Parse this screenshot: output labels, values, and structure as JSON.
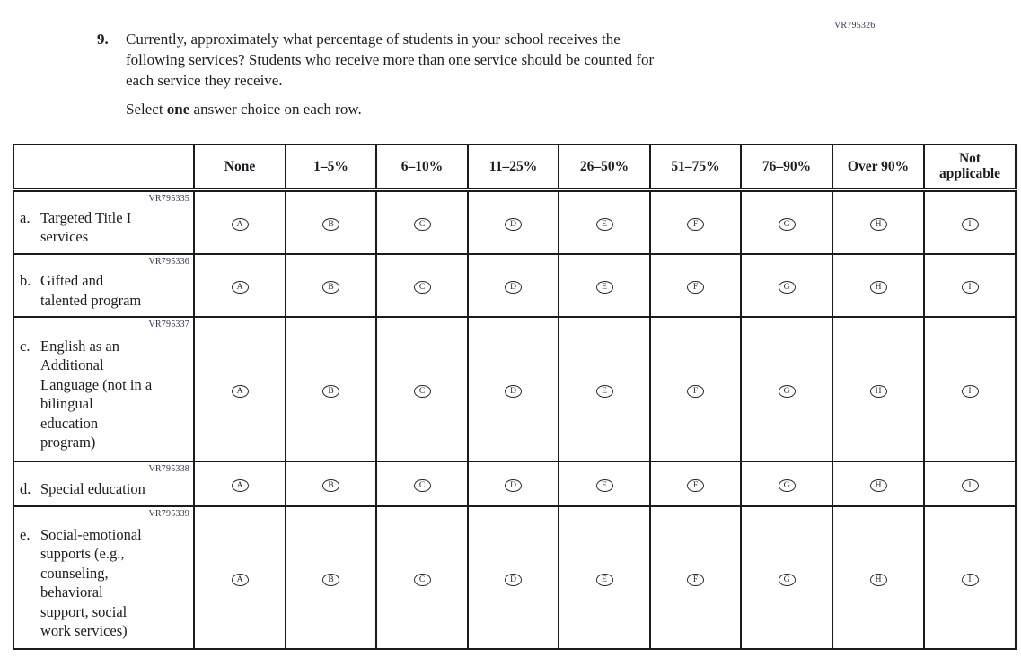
{
  "page": {
    "form_code": "VR795326"
  },
  "question": {
    "number": "9.",
    "text": "Currently, approximately what percentage of students in your school receives the\nfollowing services? Students who receive more than one service should be counted for\neach service they receive.",
    "instruction_prefix": "Select ",
    "instruction_bold": "one",
    "instruction_suffix": " answer choice on each row."
  },
  "table": {
    "column_headers": [
      "None",
      "1–5%",
      "6–10%",
      "11–25%",
      "26–50%",
      "51–75%",
      "76–90%",
      "Over 90%",
      "Not applicable"
    ],
    "option_letters": [
      "A",
      "B",
      "C",
      "D",
      "E",
      "F",
      "G",
      "H",
      "I"
    ],
    "rows": [
      {
        "code": "VR795335",
        "marker": "a.",
        "label": "Targeted Title I\nservices"
      },
      {
        "code": "VR795336",
        "marker": "b.",
        "label": "Gifted and\ntalented program"
      },
      {
        "code": "VR795337",
        "marker": "c.",
        "label": "English as an\nAdditional\nLanguage (not in a\nbilingual\neducation\nprogram)"
      },
      {
        "code": "VR795338",
        "marker": "d.",
        "label": "Special education"
      },
      {
        "code": "VR795339",
        "marker": "e.",
        "label": "Social-emotional\nsupports (e.g.,\ncounseling,\nbehavioral\nsupport, social\nwork services)"
      }
    ]
  }
}
